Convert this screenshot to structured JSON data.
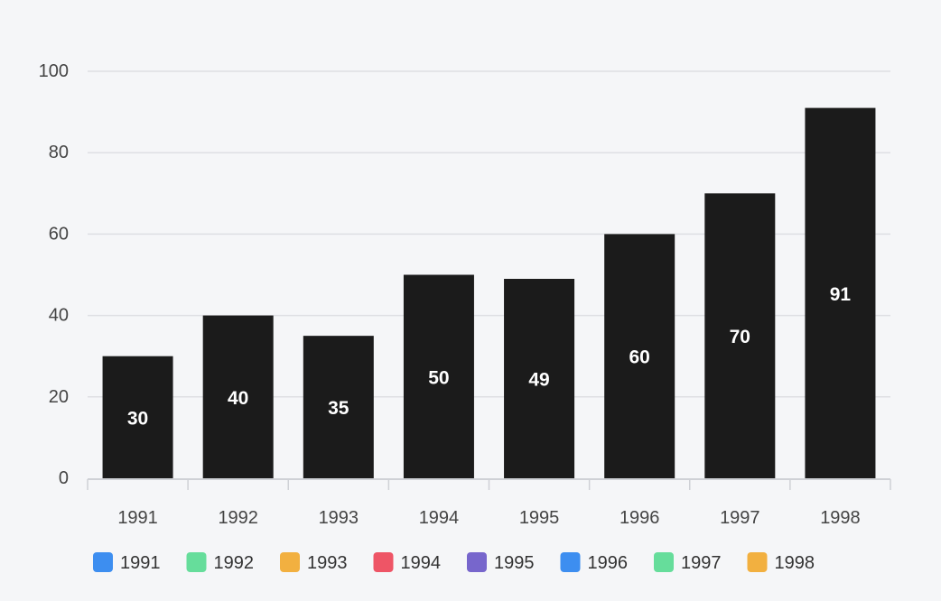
{
  "chart_data": {
    "type": "bar",
    "categories": [
      "1991",
      "1992",
      "1993",
      "1994",
      "1995",
      "1996",
      "1997",
      "1998"
    ],
    "values": [
      30,
      40,
      35,
      50,
      49,
      60,
      70,
      91
    ],
    "title": "",
    "xlabel": "",
    "ylabel": "",
    "ylim": [
      0,
      100
    ],
    "yticks": [
      "0",
      "20",
      "40",
      "60",
      "80",
      "100"
    ],
    "grid": true,
    "bar_color": "#1b1b1b",
    "data_label_color": "#ffffff",
    "legend_position": "bottom",
    "legend": [
      {
        "label": "1991",
        "color": "#3d8ef0"
      },
      {
        "label": "1992",
        "color": "#66dd9b"
      },
      {
        "label": "1993",
        "color": "#f2b040"
      },
      {
        "label": "1994",
        "color": "#ee5566"
      },
      {
        "label": "1995",
        "color": "#7766cc"
      },
      {
        "label": "1996",
        "color": "#3d8ef0"
      },
      {
        "label": "1997",
        "color": "#66dd9b"
      },
      {
        "label": "1998",
        "color": "#f2b040"
      }
    ]
  }
}
